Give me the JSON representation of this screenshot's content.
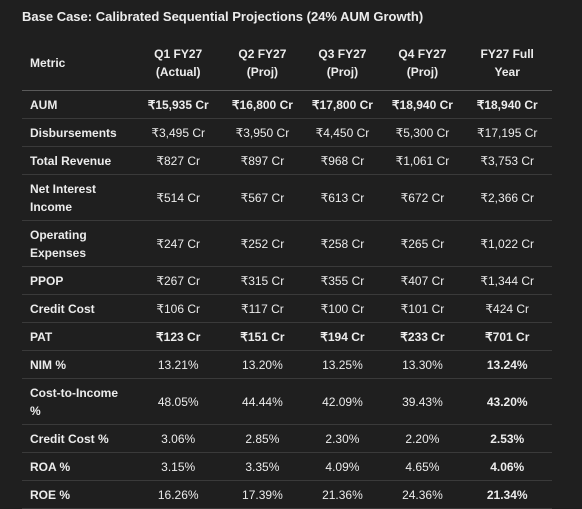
{
  "title": "Base Case: Calibrated Sequential Projections (24% AUM Growth)",
  "table": {
    "header": [
      "Metric",
      "Q1 FY27 (Actual)",
      "Q2 FY27 (Proj)",
      "Q3 FY27 (Proj)",
      "Q4 FY27 (Proj)",
      "FY27 Full Year"
    ],
    "rows": [
      [
        "AUM",
        "₹15,935 Cr",
        "₹16,800 Cr",
        "₹17,800 Cr",
        "₹18,940 Cr",
        "₹18,940 Cr"
      ],
      [
        "Disbursements",
        "₹3,495 Cr",
        "₹3,950 Cr",
        "₹4,450 Cr",
        "₹5,300 Cr",
        "₹17,195 Cr"
      ],
      [
        "Total Revenue",
        "₹827 Cr",
        "₹897 Cr",
        "₹968 Cr",
        "₹1,061 Cr",
        "₹3,753 Cr"
      ],
      [
        "Net Interest Income",
        "₹514 Cr",
        "₹567 Cr",
        "₹613 Cr",
        "₹672 Cr",
        "₹2,366 Cr"
      ],
      [
        "Operating Expenses",
        "₹247 Cr",
        "₹252 Cr",
        "₹258 Cr",
        "₹265 Cr",
        "₹1,022 Cr"
      ],
      [
        "PPOP",
        "₹267 Cr",
        "₹315 Cr",
        "₹355 Cr",
        "₹407 Cr",
        "₹1,344 Cr"
      ],
      [
        "Credit Cost",
        "₹106 Cr",
        "₹117 Cr",
        "₹100 Cr",
        "₹101 Cr",
        "₹424 Cr"
      ],
      [
        "PAT",
        "₹123 Cr",
        "₹151 Cr",
        "₹194 Cr",
        "₹233 Cr",
        "₹701 Cr"
      ],
      [
        "NIM %",
        "13.21%",
        "13.20%",
        "13.25%",
        "13.30%",
        "13.24%"
      ],
      [
        "Cost-to-Income %",
        "48.05%",
        "44.44%",
        "42.09%",
        "39.43%",
        "43.20%"
      ],
      [
        "Credit Cost %",
        "3.06%",
        "2.85%",
        "2.30%",
        "2.20%",
        "2.53%"
      ],
      [
        "ROA %",
        "3.15%",
        "3.35%",
        "4.09%",
        "4.65%",
        "4.06%"
      ],
      [
        "ROE %",
        "16.26%",
        "17.39%",
        "21.36%",
        "24.36%",
        "21.34%"
      ]
    ]
  }
}
